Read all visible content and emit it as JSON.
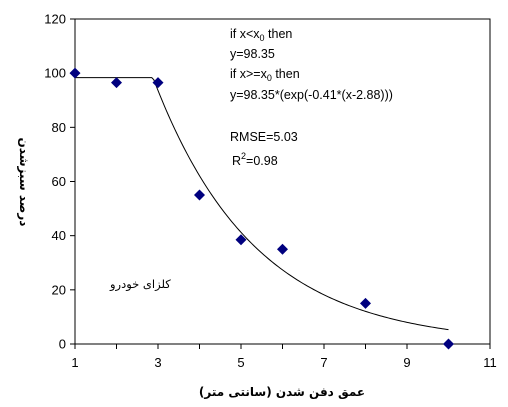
{
  "chart_data": {
    "type": "scatter",
    "xlabel": "عمق دفن شدن (سانتی متر)",
    "ylabel": "درصد سبزشدن",
    "xlim": [
      1,
      11
    ],
    "ylim": [
      0,
      120
    ],
    "xticks": [
      1,
      3,
      5,
      7,
      9,
      11
    ],
    "yticks": [
      0,
      20,
      40,
      60,
      80,
      100,
      120
    ],
    "grid": false,
    "series_label": "کلزای خودرو",
    "marker_color": "#00007f",
    "line_color": "#000000",
    "points": [
      {
        "x": 1,
        "y": 100
      },
      {
        "x": 2,
        "y": 96.5
      },
      {
        "x": 3,
        "y": 96.5
      },
      {
        "x": 4,
        "y": 55
      },
      {
        "x": 5,
        "y": 38.5
      },
      {
        "x": 6,
        "y": 35
      },
      {
        "x": 8,
        "y": 15
      },
      {
        "x": 10,
        "y": 0
      }
    ],
    "model": {
      "type": "piecewise-exponential",
      "x0": 2.88,
      "plateau": 98.35,
      "rate": -0.41,
      "x_end": 10
    },
    "annotations": {
      "line1_pre": "if x<x",
      "line1_sub": "0",
      "line1_post": " then",
      "line2": "y=98.35",
      "line3_pre": "if x>=x",
      "line3_sub": "0",
      "line3_post": " then",
      "line4": "y=98.35*(exp(-0.41*(x-2.88)))",
      "rmse": "RMSE=5.03",
      "r2_pre": "R",
      "r2_sup": "2",
      "r2_post": "=0.98"
    }
  }
}
